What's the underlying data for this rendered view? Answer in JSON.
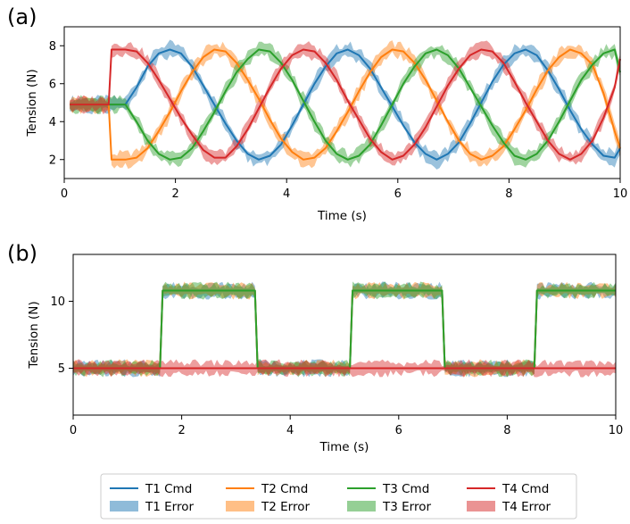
{
  "colors": {
    "T1": "#1f77b4",
    "T2": "#ff7f0e",
    "T3": "#2ca02c",
    "T4": "#d62728"
  },
  "chart_data": [
    {
      "panel": "(a)",
      "type": "line",
      "xlabel": "Time (s)",
      "ylabel": "Tension (N)",
      "xlim": [
        0,
        10
      ],
      "ylim": [
        1.0,
        9.0
      ],
      "xticks": [
        0,
        2,
        4,
        6,
        8,
        10
      ],
      "yticks": [
        2,
        4,
        6,
        8
      ],
      "series": [
        {
          "name": "T1 Cmd",
          "key": "T1",
          "x": [
            0.1,
            0.8,
            1.1,
            1.3,
            1.5,
            1.7,
            1.9,
            2.1,
            2.3,
            2.5,
            2.7,
            2.9,
            3.1,
            3.3,
            3.5,
            3.7,
            3.9,
            4.1,
            4.3,
            4.5,
            4.7,
            4.9,
            5.1,
            5.3,
            5.5,
            5.7,
            5.9,
            6.1,
            6.3,
            6.5,
            6.7,
            6.9,
            7.1,
            7.3,
            7.5,
            7.7,
            7.9,
            8.1,
            8.3,
            8.5,
            8.7,
            8.9,
            9.1,
            9.3,
            9.5,
            9.7,
            9.9,
            10.0
          ],
          "y": [
            4.9,
            4.9,
            4.9,
            5.8,
            6.9,
            7.6,
            7.8,
            7.6,
            6.9,
            5.9,
            4.9,
            3.9,
            3.0,
            2.3,
            2.0,
            2.2,
            2.8,
            3.8,
            4.9,
            6.0,
            6.9,
            7.6,
            7.8,
            7.5,
            6.8,
            5.8,
            4.8,
            3.8,
            2.9,
            2.3,
            2.0,
            2.3,
            2.9,
            3.9,
            5.0,
            6.1,
            7.0,
            7.6,
            7.8,
            7.5,
            6.7,
            5.7,
            4.6,
            3.6,
            2.8,
            2.2,
            2.1,
            2.6
          ]
        },
        {
          "name": "T2 Cmd",
          "key": "T2",
          "x": [
            0.1,
            0.8,
            0.85,
            1.1,
            1.3,
            1.5,
            1.7,
            1.9,
            2.1,
            2.3,
            2.5,
            2.7,
            2.9,
            3.1,
            3.3,
            3.5,
            3.7,
            3.9,
            4.1,
            4.3,
            4.5,
            4.7,
            4.9,
            5.1,
            5.3,
            5.5,
            5.7,
            5.9,
            6.1,
            6.3,
            6.5,
            6.7,
            6.9,
            7.1,
            7.3,
            7.5,
            7.7,
            7.9,
            8.1,
            8.3,
            8.5,
            8.7,
            8.9,
            9.1,
            9.3,
            9.5,
            9.7,
            9.9,
            10.0
          ],
          "y": [
            4.9,
            4.9,
            2.0,
            2.0,
            2.1,
            2.6,
            3.5,
            4.5,
            5.6,
            6.6,
            7.4,
            7.8,
            7.7,
            7.1,
            6.2,
            5.2,
            4.1,
            3.1,
            2.4,
            2.0,
            2.1,
            2.6,
            3.5,
            4.5,
            5.6,
            6.6,
            7.4,
            7.8,
            7.7,
            7.1,
            6.2,
            5.1,
            4.0,
            3.0,
            2.3,
            2.0,
            2.2,
            2.7,
            3.6,
            4.6,
            5.7,
            6.7,
            7.4,
            7.8,
            7.6,
            7.0,
            5.5,
            3.5,
            2.6
          ]
        },
        {
          "name": "T3 Cmd",
          "key": "T3",
          "x": [
            0.1,
            0.8,
            1.1,
            1.3,
            1.5,
            1.7,
            1.9,
            2.1,
            2.3,
            2.5,
            2.7,
            2.9,
            3.1,
            3.3,
            3.5,
            3.7,
            3.9,
            4.1,
            4.3,
            4.5,
            4.7,
            4.9,
            5.1,
            5.3,
            5.5,
            5.7,
            5.9,
            6.1,
            6.3,
            6.5,
            6.7,
            6.9,
            7.1,
            7.3,
            7.5,
            7.7,
            7.9,
            8.1,
            8.3,
            8.5,
            8.7,
            8.9,
            9.1,
            9.3,
            9.5,
            9.7,
            9.9,
            10.0
          ],
          "y": [
            4.9,
            4.9,
            4.9,
            4.0,
            3.0,
            2.3,
            2.0,
            2.1,
            2.6,
            3.5,
            4.5,
            5.6,
            6.6,
            7.3,
            7.8,
            7.7,
            7.1,
            6.2,
            5.1,
            4.0,
            3.0,
            2.3,
            2.0,
            2.2,
            2.8,
            3.8,
            4.9,
            6.0,
            6.9,
            7.6,
            7.8,
            7.5,
            6.8,
            5.8,
            4.8,
            3.8,
            2.9,
            2.2,
            2.0,
            2.3,
            3.0,
            4.0,
            5.1,
            6.2,
            7.0,
            7.6,
            7.8,
            6.6
          ]
        },
        {
          "name": "T4 Cmd",
          "key": "T4",
          "x": [
            0.1,
            0.8,
            0.85,
            1.1,
            1.3,
            1.5,
            1.7,
            1.9,
            2.1,
            2.3,
            2.5,
            2.7,
            2.9,
            3.1,
            3.3,
            3.5,
            3.7,
            3.9,
            4.1,
            4.3,
            4.5,
            4.7,
            4.9,
            5.1,
            5.3,
            5.5,
            5.7,
            5.9,
            6.1,
            6.3,
            6.5,
            6.7,
            6.9,
            7.1,
            7.3,
            7.5,
            7.7,
            7.9,
            8.1,
            8.3,
            8.5,
            8.7,
            8.9,
            9.1,
            9.3,
            9.5,
            9.7,
            9.9,
            10.0
          ],
          "y": [
            4.9,
            4.9,
            7.8,
            7.8,
            7.7,
            7.1,
            6.2,
            5.2,
            4.2,
            3.3,
            2.5,
            2.1,
            2.1,
            2.7,
            3.6,
            4.7,
            5.8,
            6.8,
            7.5,
            7.8,
            7.7,
            7.1,
            6.2,
            5.1,
            4.1,
            3.1,
            2.4,
            2.0,
            2.2,
            2.8,
            3.7,
            4.8,
            5.9,
            6.8,
            7.5,
            7.8,
            7.7,
            7.1,
            6.1,
            5.0,
            4.0,
            3.0,
            2.3,
            2.0,
            2.3,
            3.0,
            4.2,
            5.8,
            7.3
          ]
        }
      ]
    },
    {
      "panel": "(b)",
      "type": "line",
      "xlabel": "Time (s)",
      "ylabel": "Tension (N)",
      "xlim": [
        0,
        10
      ],
      "ylim": [
        1.5,
        13.5
      ],
      "xticks": [
        0,
        2,
        4,
        6,
        8,
        10
      ],
      "yticks": [
        5,
        10
      ],
      "series": [
        {
          "name": "T1 Cmd",
          "key": "T1",
          "x": [
            0,
            1.6,
            1.65,
            3.35,
            3.4,
            5.1,
            5.15,
            6.8,
            6.85,
            8.5,
            8.55,
            10.0
          ],
          "y": [
            5.0,
            5.0,
            10.8,
            10.8,
            5.0,
            5.0,
            10.8,
            10.8,
            5.0,
            5.0,
            10.8,
            10.8
          ]
        },
        {
          "name": "T2 Cmd",
          "key": "T2",
          "x": [
            0,
            1.6,
            1.65,
            3.35,
            3.4,
            5.1,
            5.15,
            6.8,
            6.85,
            8.5,
            8.55,
            10.0
          ],
          "y": [
            5.0,
            5.0,
            10.8,
            10.8,
            5.0,
            5.0,
            10.8,
            10.8,
            5.0,
            5.0,
            10.8,
            10.8
          ]
        },
        {
          "name": "T3 Cmd",
          "key": "T3",
          "x": [
            0,
            1.6,
            1.65,
            3.35,
            3.4,
            5.1,
            5.15,
            6.8,
            6.85,
            8.5,
            8.55,
            10.0
          ],
          "y": [
            5.0,
            5.0,
            10.8,
            10.8,
            5.0,
            5.0,
            10.8,
            10.8,
            5.0,
            5.0,
            10.8,
            10.8
          ]
        },
        {
          "name": "T4 Cmd",
          "key": "T4",
          "x": [
            0,
            10.0
          ],
          "y": [
            5.0,
            5.0
          ]
        }
      ]
    }
  ],
  "legend": {
    "items": [
      {
        "key": "T1",
        "cmd_label": "T1 Cmd",
        "error_label": "T1 Error"
      },
      {
        "key": "T2",
        "cmd_label": "T2 Cmd",
        "error_label": "T2 Error"
      },
      {
        "key": "T3",
        "cmd_label": "T3 Cmd",
        "error_label": "T3 Error"
      },
      {
        "key": "T4",
        "cmd_label": "T4 Cmd",
        "error_label": "T4 Error"
      }
    ]
  }
}
